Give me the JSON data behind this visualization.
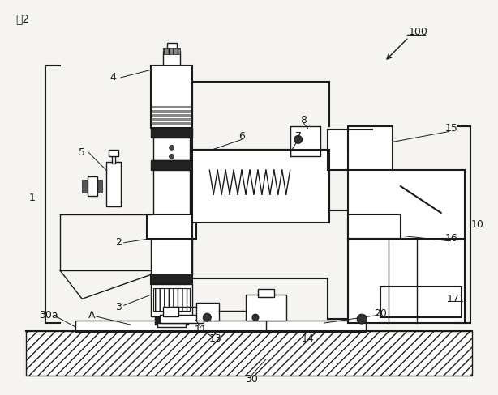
{
  "title": "囲2",
  "ref_number": "100",
  "bg_color": "#f5f4f0",
  "line_color": "#1a1a1a",
  "fig_width": 6.14,
  "fig_height": 4.88,
  "dpi": 100
}
